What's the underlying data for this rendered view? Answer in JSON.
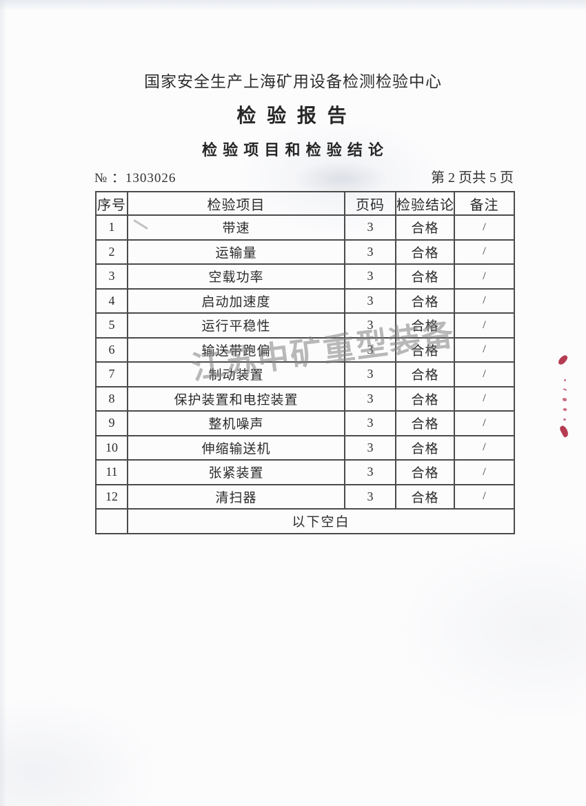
{
  "document": {
    "org_name": "国家安全生产上海矿用设备检测检验中心",
    "report_title": "检 验 报 告",
    "section_title": "检 验 项 目 和 检 验 结 论",
    "report_no_label": "№ ：",
    "report_no": "1303026",
    "page_indicator": "第 2 页共 5 页"
  },
  "watermark": "江苏中矿重型装备",
  "table": {
    "columns": [
      "序号",
      "检验项目",
      "页码",
      "检验结论",
      "备注"
    ],
    "rows": [
      {
        "no": "1",
        "item": "带速",
        "page": "3",
        "conclusion": "合格",
        "remark": "/"
      },
      {
        "no": "2",
        "item": "运输量",
        "page": "3",
        "conclusion": "合格",
        "remark": "/"
      },
      {
        "no": "3",
        "item": "空载功率",
        "page": "3",
        "conclusion": "合格",
        "remark": "/"
      },
      {
        "no": "4",
        "item": "启动加速度",
        "page": "3",
        "conclusion": "合格",
        "remark": "/"
      },
      {
        "no": "5",
        "item": "运行平稳性",
        "page": "3",
        "conclusion": "合格",
        "remark": "/"
      },
      {
        "no": "6",
        "item": "输送带跑偏",
        "page": "3",
        "conclusion": "合格",
        "remark": "/"
      },
      {
        "no": "7",
        "item": "制动装置",
        "page": "3",
        "conclusion": "合格",
        "remark": "/"
      },
      {
        "no": "8",
        "item": "保护装置和电控装置",
        "page": "3",
        "conclusion": "合格",
        "remark": "/"
      },
      {
        "no": "9",
        "item": "整机噪声",
        "page": "3",
        "conclusion": "合格",
        "remark": "/"
      },
      {
        "no": "10",
        "item": "伸缩输送机",
        "page": "3",
        "conclusion": "合格",
        "remark": "/"
      },
      {
        "no": "11",
        "item": "张紧装置",
        "page": "3",
        "conclusion": "合格",
        "remark": "/"
      },
      {
        "no": "12",
        "item": "清扫器",
        "page": "3",
        "conclusion": "合格",
        "remark": "/"
      }
    ],
    "footer_note": "以下空白"
  }
}
